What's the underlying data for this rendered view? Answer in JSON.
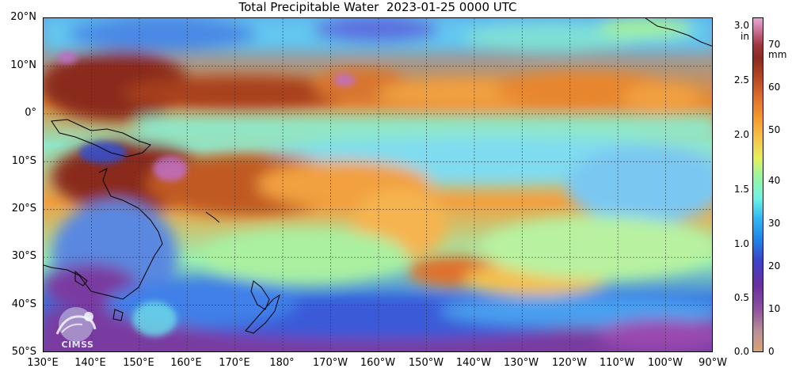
{
  "title": "Total Precipitable Water  2023-01-25 0000 UTC",
  "latitude_labels": [
    "20°N",
    "10°N",
    "0°",
    "10°S",
    "20°S",
    "30°S",
    "40°S",
    "50°S"
  ],
  "longitude_labels": [
    "130°E",
    "140°E",
    "150°E",
    "160°E",
    "170°E",
    "180°",
    "170°W",
    "160°W",
    "150°W",
    "140°W",
    "130°W",
    "120°W",
    "110°W",
    "100°W",
    "90°W"
  ],
  "colorbar": {
    "left_unit": "in",
    "right_unit": "mm",
    "inch_ticks": [
      "0.0",
      "0.5",
      "1.0",
      "1.5",
      "2.0",
      "2.5",
      "3.0"
    ],
    "mm_ticks": [
      "0",
      "10",
      "20",
      "30",
      "40",
      "50",
      "60",
      "70"
    ]
  },
  "logo": {
    "text": "CIMSS",
    "icon": "cimss-logo"
  }
}
